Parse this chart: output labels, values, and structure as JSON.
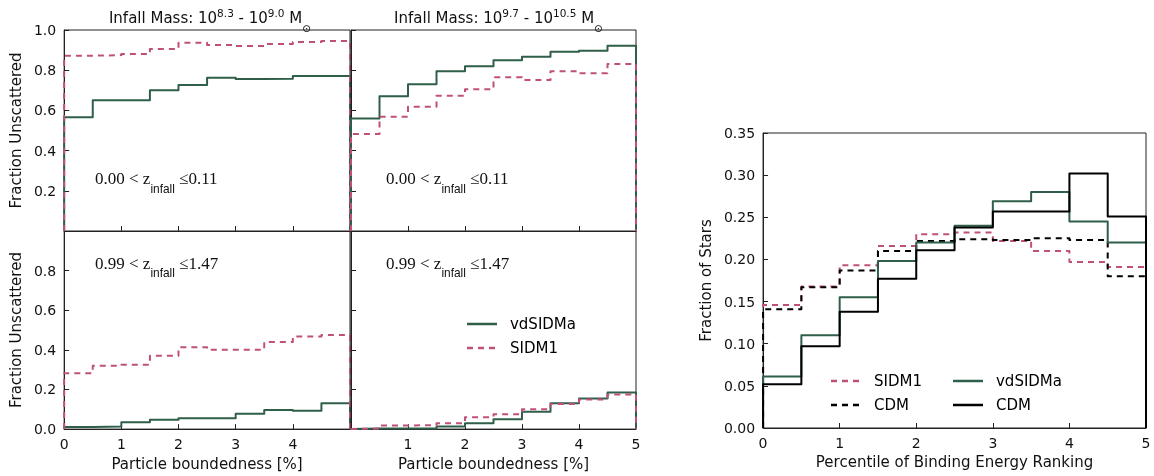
{
  "chart_data": [
    {
      "type": "histogram",
      "title": "Infall Mass: 10$^{8.3}$ - 10$^{9.0}$ M$_{⊙}$",
      "ylabel": "Fraction Unscattered",
      "annotations": [
        "0.00 < z$_{infall}$ ≤0.11"
      ],
      "bins": [
        0,
        0.5,
        1,
        1.5,
        2,
        2.5,
        3,
        3.5,
        4,
        4.5,
        5
      ],
      "series": [
        {
          "color": "#2f5f48",
          "line_style": "solid",
          "values": [
            0.566,
            0.65,
            0.65,
            0.7,
            0.726,
            0.763,
            0.756,
            0.757,
            0.771,
            0.771
          ]
        },
        {
          "color": "#c0507a",
          "line_style": "dashed",
          "values": [
            0.872,
            0.875,
            0.88,
            0.905,
            0.937,
            0.925,
            0.92,
            0.93,
            0.94,
            0.945
          ]
        }
      ],
      "xlim": [
        0,
        5
      ],
      "ylim": [
        0,
        1
      ],
      "xticks": [
        0,
        1,
        2,
        3,
        4
      ],
      "yticks": [
        0.2,
        0.4,
        0.6,
        0.8,
        {
          "value": 1,
          "label": "1.0"
        }
      ],
      "tick_labels": "y",
      "grid": false,
      "legend": false
    },
    {
      "type": "histogram",
      "title": "Infall Mass: 10$^{9.7}$ - 10$^{10.5}$ M$_{⊙}$",
      "annotations": [
        "0.00 < z$_{infall}$ ≤0.11"
      ],
      "bins": [
        0,
        0.5,
        1,
        1.5,
        2,
        2.5,
        3,
        3.5,
        4,
        4.5,
        5
      ],
      "series": [
        {
          "color": "#2f5f48",
          "line_style": "solid",
          "values": [
            0.56,
            0.67,
            0.73,
            0.795,
            0.82,
            0.85,
            0.867,
            0.892,
            0.897,
            0.922
          ]
        },
        {
          "color": "#c0507a",
          "line_style": "dashed",
          "values": [
            0.483,
            0.569,
            0.618,
            0.673,
            0.705,
            0.765,
            0.751,
            0.795,
            0.785,
            0.831
          ]
        }
      ],
      "xlim": [
        0,
        5
      ],
      "ylim": [
        0,
        1
      ],
      "xticks": [
        1,
        2,
        3,
        4,
        5
      ],
      "yticks": [
        0,
        0.2,
        0.4,
        0.6,
        0.8,
        1
      ],
      "tick_labels": false,
      "grid": false,
      "legend": false
    },
    {
      "type": "histogram",
      "xlabel": "Particle boundedness [%]",
      "ylabel": "Fraction Unscattered",
      "annotations": [
        "0.99 < z$_{infall}$ ≤1.47"
      ],
      "bins": [
        0,
        0.5,
        1,
        1.5,
        2,
        2.5,
        3,
        3.5,
        4,
        4.5,
        5
      ],
      "series": [
        {
          "color": "#2f5f48",
          "line_style": "solid",
          "values": [
            0.01,
            0.013,
            0.035,
            0.047,
            0.055,
            0.055,
            0.077,
            0.097,
            0.093,
            0.13
          ]
        },
        {
          "color": "#c0507a",
          "line_style": "dashed",
          "values": [
            0.282,
            0.32,
            0.325,
            0.37,
            0.413,
            0.4,
            0.4,
            0.44,
            0.468,
            0.475
          ]
        }
      ],
      "xlim": [
        0,
        5
      ],
      "ylim": [
        0,
        1
      ],
      "xticks": [
        0,
        1,
        2,
        3,
        4
      ],
      "yticks": [
        {
          "value": 0,
          "label": "0.0"
        },
        0.2,
        0.4,
        0.6,
        0.8
      ],
      "grid": false,
      "legend": false
    },
    {
      "type": "histogram",
      "xlabel": "Particle boundedness [%]",
      "annotations": [
        "0.99 < z$_{infall}$ ≤1.47"
      ],
      "bins": [
        0,
        0.5,
        1,
        1.5,
        2,
        2.5,
        3,
        3.5,
        4,
        4.5,
        5
      ],
      "series": [
        {
          "name": "vdSIDMa",
          "color": "#2f5f48",
          "line_style": "solid",
          "values": [
            0.003,
            0.003,
            0.003,
            0.013,
            0.03,
            0.05,
            0.088,
            0.13,
            0.155,
            0.185
          ]
        },
        {
          "name": "SIDM1",
          "color": "#c0507a",
          "line_style": "dashed",
          "values": [
            0.003,
            0.018,
            0.02,
            0.03,
            0.06,
            0.075,
            0.1,
            0.127,
            0.15,
            0.175
          ]
        }
      ],
      "xlim": [
        0,
        5
      ],
      "ylim": [
        0,
        1
      ],
      "xticks": [
        1,
        2,
        3,
        4,
        5
      ],
      "yticks": [
        0,
        0.2,
        0.4,
        0.6,
        0.8,
        1
      ],
      "tick_labels": "x",
      "grid": false,
      "legend": "right"
    },
    {
      "type": "histogram",
      "xlabel": "Percentile of Binding Energy Ranking",
      "ylabel": "Fraction of Stars",
      "bins": [
        0,
        0.5,
        1,
        1.5,
        2,
        2.5,
        3,
        3.5,
        4,
        4.5,
        5
      ],
      "series": [
        {
          "name": "SIDM1",
          "color": "#c0507a",
          "line_style": "dashed",
          "values": [
            0.146,
            0.168,
            0.193,
            0.216,
            0.23,
            0.232,
            0.222,
            0.21,
            0.197,
            0.191
          ]
        },
        {
          "name": "CDM",
          "color": "#000000",
          "line_style": "dashed",
          "values": [
            0.141,
            0.167,
            0.187,
            0.21,
            0.222,
            0.224,
            0.223,
            0.225,
            0.223,
            0.18
          ]
        },
        {
          "name": "vdSIDMa",
          "color": "#2f5f48",
          "line_style": "solid",
          "values": [
            0.061,
            0.11,
            0.155,
            0.198,
            0.22,
            0.24,
            0.269,
            0.28,
            0.245,
            0.22
          ]
        },
        {
          "name": "CDM",
          "color": "#000000",
          "line_style": "solid",
          "values": [
            0.052,
            0.097,
            0.138,
            0.177,
            0.211,
            0.238,
            0.257,
            0.257,
            0.302,
            0.251
          ]
        }
      ],
      "xlim": [
        0,
        5
      ],
      "ylim": [
        0,
        0.35
      ],
      "xticks": [
        0,
        1,
        2,
        3,
        4,
        5
      ],
      "yticks": [
        {
          "value": 0,
          "label": "0.00"
        },
        0.05,
        {
          "value": 0.1,
          "label": "0.10"
        },
        0.15,
        {
          "value": 0.2,
          "label": "0.20"
        },
        0.25,
        {
          "value": 0.3,
          "label": "0.30"
        },
        0.35
      ],
      "grid": false,
      "legend": "bottom"
    }
  ]
}
